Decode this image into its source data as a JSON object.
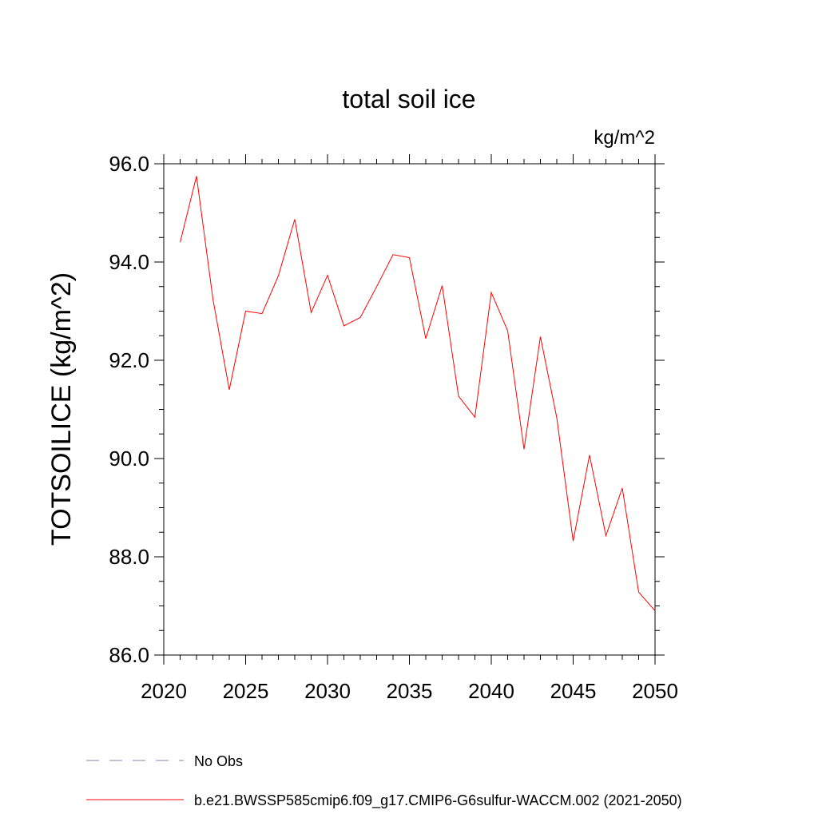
{
  "chart_data": {
    "type": "line",
    "title": "total soil ice",
    "units": "kg/m^2",
    "xlabel": "",
    "ylabel": "TOTSOILICE  (kg/m^2)",
    "xlim": [
      2020,
      2050
    ],
    "ylim": [
      86.0,
      96.0
    ],
    "xticks": [
      2020,
      2025,
      2030,
      2035,
      2040,
      2045,
      2050
    ],
    "yticks": [
      86.0,
      88.0,
      90.0,
      92.0,
      94.0,
      96.0
    ],
    "ytick_labels": [
      "86.0",
      "88.0",
      "90.0",
      "92.0",
      "94.0",
      "96.0"
    ],
    "grid": false,
    "legend_position": "bottom",
    "series": [
      {
        "name": "b.e21.BWSSP585cmip6.f09_g17.CMIP6-G6sulfur-WACCM.002 (2021-2050)",
        "color": "#ff0000",
        "style": "solid",
        "x": [
          2021,
          2022,
          2023,
          2024,
          2025,
          2026,
          2027,
          2028,
          2029,
          2030,
          2031,
          2032,
          2033,
          2034,
          2035,
          2036,
          2037,
          2038,
          2039,
          2040,
          2041,
          2042,
          2043,
          2044,
          2045,
          2046,
          2047,
          2048,
          2049,
          2050
        ],
        "y": [
          94.4,
          95.75,
          93.25,
          91.4,
          93.0,
          92.95,
          93.72,
          94.87,
          92.97,
          93.73,
          92.7,
          92.87,
          93.5,
          94.15,
          94.09,
          92.44,
          93.52,
          91.27,
          90.84,
          93.38,
          92.6,
          90.19,
          92.48,
          90.83,
          88.32,
          90.07,
          88.43,
          89.4,
          87.28,
          86.9
        ]
      }
    ],
    "legend": [
      {
        "label": "No Obs",
        "color": "#8080c0",
        "style": "dashed"
      },
      {
        "label": "b.e21.BWSSP585cmip6.f09_g17.CMIP6-G6sulfur-WACCM.002 (2021-2050)",
        "color": "#ff0000",
        "style": "solid"
      }
    ]
  }
}
